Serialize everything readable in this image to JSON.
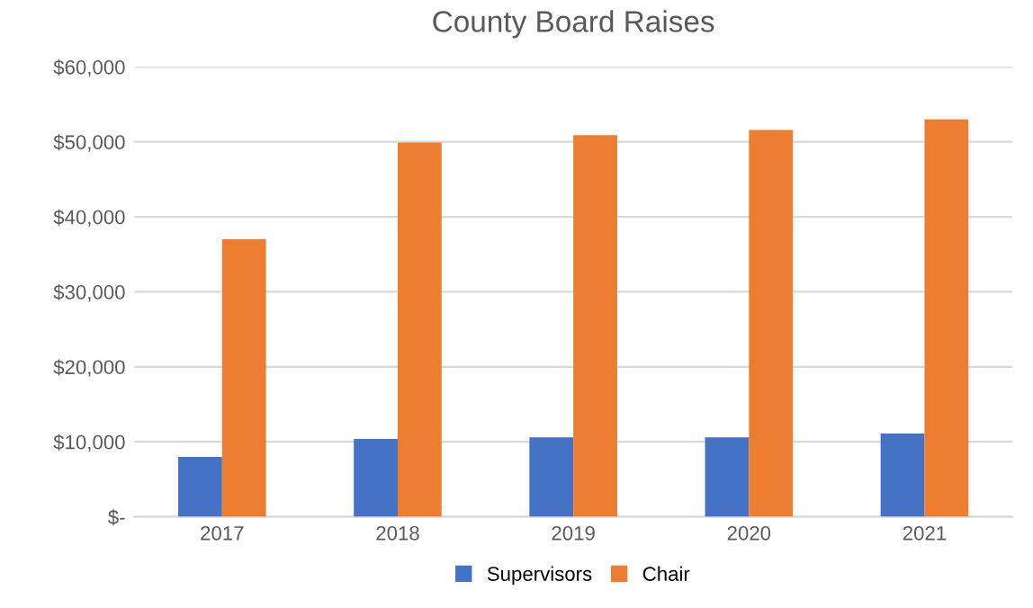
{
  "chart_data": {
    "type": "bar",
    "title": "County Board Raises",
    "categories": [
      "2017",
      "2018",
      "2019",
      "2020",
      "2021"
    ],
    "series": [
      {
        "name": "Supervisors",
        "color": "#4472c4",
        "values": [
          8000,
          10400,
          10600,
          10600,
          11100
        ]
      },
      {
        "name": "Chair",
        "color": "#ed7d31",
        "values": [
          37000,
          49900,
          50900,
          51600,
          53000
        ]
      }
    ],
    "ylim": [
      0,
      60000
    ],
    "yticks": [
      {
        "value": 0,
        "label": "$-"
      },
      {
        "value": 10000,
        "label": "$10,000"
      },
      {
        "value": 20000,
        "label": "$20,000"
      },
      {
        "value": 30000,
        "label": "$30,000"
      },
      {
        "value": 40000,
        "label": "$40,000"
      },
      {
        "value": 50000,
        "label": "$50,000"
      },
      {
        "value": 60000,
        "label": "$60,000"
      }
    ],
    "grid": "y",
    "legend": "bottom"
  }
}
